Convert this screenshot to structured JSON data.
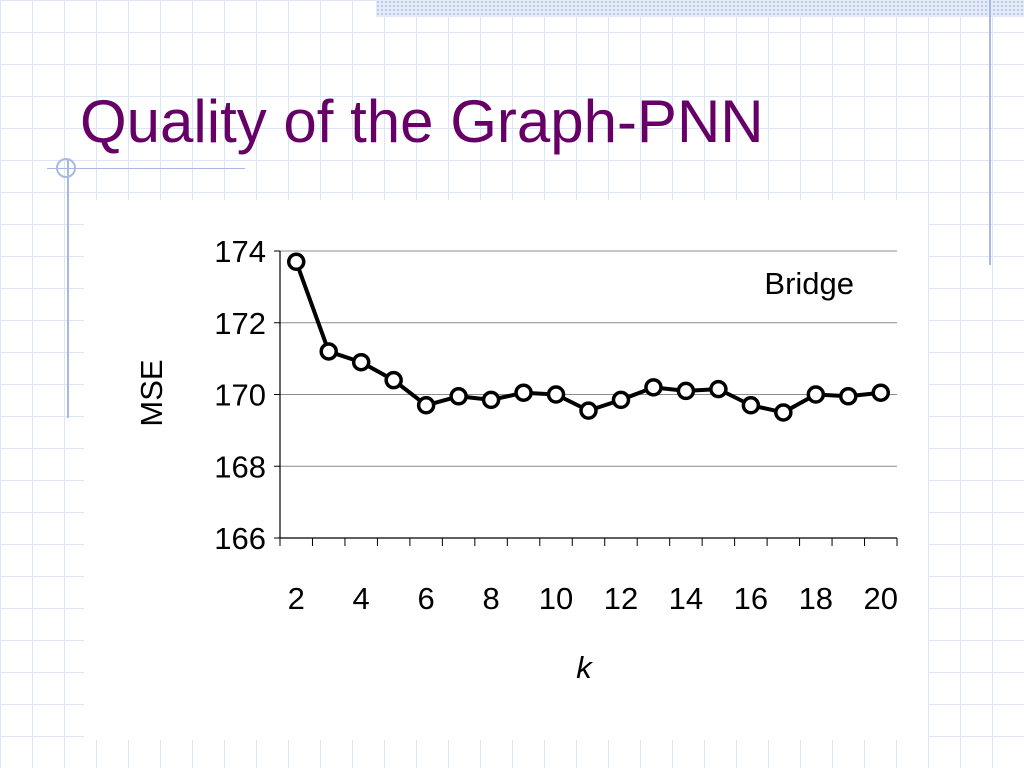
{
  "slide": {
    "title": "Quality of the Graph-PNN"
  },
  "colors": {
    "title": "#660066",
    "grid": "#dde4f4",
    "accent_rules": "#a9b8e2",
    "series": "#000000"
  },
  "chart_data": {
    "type": "line",
    "title": "",
    "xlabel": "k",
    "ylabel": "MSE",
    "annotation": "Bridge",
    "xlim": [
      1.5,
      20.5
    ],
    "ylim": [
      166,
      174
    ],
    "x_ticks": [
      2,
      4,
      6,
      8,
      10,
      12,
      14,
      16,
      18,
      20
    ],
    "y_ticks": [
      166,
      168,
      170,
      172,
      174
    ],
    "grid": true,
    "legend": "none",
    "series": [
      {
        "x": [
          2,
          3,
          4,
          5,
          6,
          7,
          8,
          9,
          10,
          11,
          12,
          13,
          14,
          15,
          16,
          17,
          18,
          19,
          20
        ],
        "y": [
          173.7,
          171.2,
          170.9,
          170.4,
          169.7,
          169.95,
          169.85,
          170.05,
          170.0,
          169.55,
          169.85,
          170.2,
          170.1,
          170.15,
          169.7,
          169.5,
          170.0,
          169.95,
          170.05
        ]
      }
    ]
  }
}
